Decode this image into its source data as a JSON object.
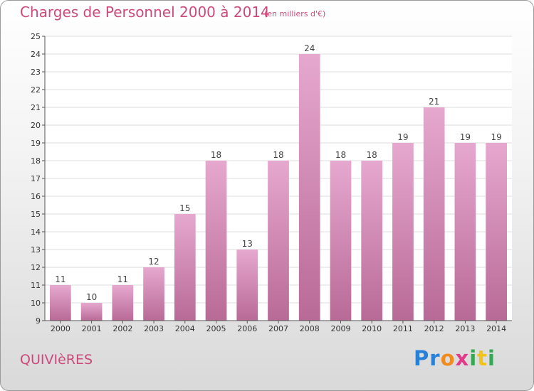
{
  "header": {
    "title": "Charges de Personnel 2000 à 2014",
    "subtitle": "(en milliers d'€)"
  },
  "footer": {
    "commune": "QUIVIèRES",
    "logo": "Proxiti"
  },
  "colors": {
    "bar_top": "#e6a8cf",
    "bar_bottom": "#b86a96",
    "title": "#cc4a7a",
    "grid": "#dddddd"
  },
  "chart_data": {
    "type": "bar",
    "title": "Charges de Personnel 2000 à 2014",
    "subtitle": "(en milliers d'€)",
    "categories": [
      "2000",
      "2001",
      "2002",
      "2003",
      "2004",
      "2005",
      "2006",
      "2007",
      "2008",
      "2009",
      "2010",
      "2011",
      "2012",
      "2013",
      "2014"
    ],
    "values": [
      11,
      10,
      11,
      12,
      15,
      18,
      13,
      18,
      24,
      18,
      18,
      19,
      21,
      19,
      19
    ],
    "ylim": [
      9,
      25
    ],
    "yticks": [
      9,
      10,
      11,
      12,
      13,
      14,
      15,
      16,
      17,
      18,
      19,
      20,
      21,
      22,
      23,
      24,
      25
    ],
    "grid": true,
    "legend": "none"
  }
}
